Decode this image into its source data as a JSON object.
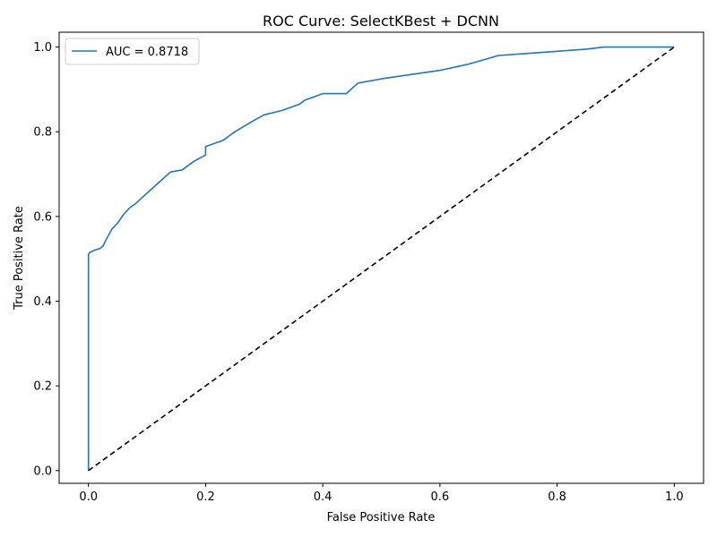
{
  "chart_data": {
    "type": "line",
    "title": "ROC Curve: SelectKBest + DCNN",
    "xlabel": "False Positive Rate",
    "ylabel": "True Positive Rate",
    "xlim": [
      -0.05,
      1.05
    ],
    "ylim": [
      -0.03,
      1.035
    ],
    "x_ticks": [
      0.0,
      0.2,
      0.4,
      0.6,
      0.8,
      1.0
    ],
    "y_ticks": [
      0.0,
      0.2,
      0.4,
      0.6,
      0.8,
      1.0
    ],
    "x_tick_labels": [
      "0.0",
      "0.2",
      "0.4",
      "0.6",
      "0.8",
      "1.0"
    ],
    "y_tick_labels": [
      "0.0",
      "0.2",
      "0.4",
      "0.6",
      "0.8",
      "1.0"
    ],
    "grid": false,
    "legend_position": "upper-left",
    "series": [
      {
        "name": "AUC = 0.8718",
        "color": "#1f77b4",
        "style": "solid",
        "x": [
          0.0,
          0.0,
          0.002,
          0.01,
          0.02,
          0.025,
          0.03,
          0.04,
          0.05,
          0.06,
          0.07,
          0.08,
          0.1,
          0.12,
          0.14,
          0.16,
          0.18,
          0.2,
          0.2,
          0.23,
          0.25,
          0.28,
          0.3,
          0.33,
          0.36,
          0.37,
          0.4,
          0.44,
          0.46,
          0.5,
          0.55,
          0.6,
          0.65,
          0.7,
          0.75,
          0.8,
          0.85,
          0.88,
          0.9,
          0.95,
          1.0
        ],
        "y": [
          0.0,
          0.51,
          0.515,
          0.52,
          0.525,
          0.53,
          0.545,
          0.57,
          0.585,
          0.605,
          0.62,
          0.63,
          0.655,
          0.68,
          0.705,
          0.71,
          0.73,
          0.745,
          0.765,
          0.78,
          0.8,
          0.825,
          0.84,
          0.85,
          0.865,
          0.875,
          0.89,
          0.89,
          0.915,
          0.925,
          0.935,
          0.945,
          0.96,
          0.98,
          0.985,
          0.99,
          0.995,
          1.0,
          1.0,
          1.0,
          1.0
        ]
      },
      {
        "name": "",
        "color": "#000000",
        "style": "dashed",
        "x": [
          0.0,
          1.0
        ],
        "y": [
          0.0,
          1.0
        ]
      }
    ]
  }
}
